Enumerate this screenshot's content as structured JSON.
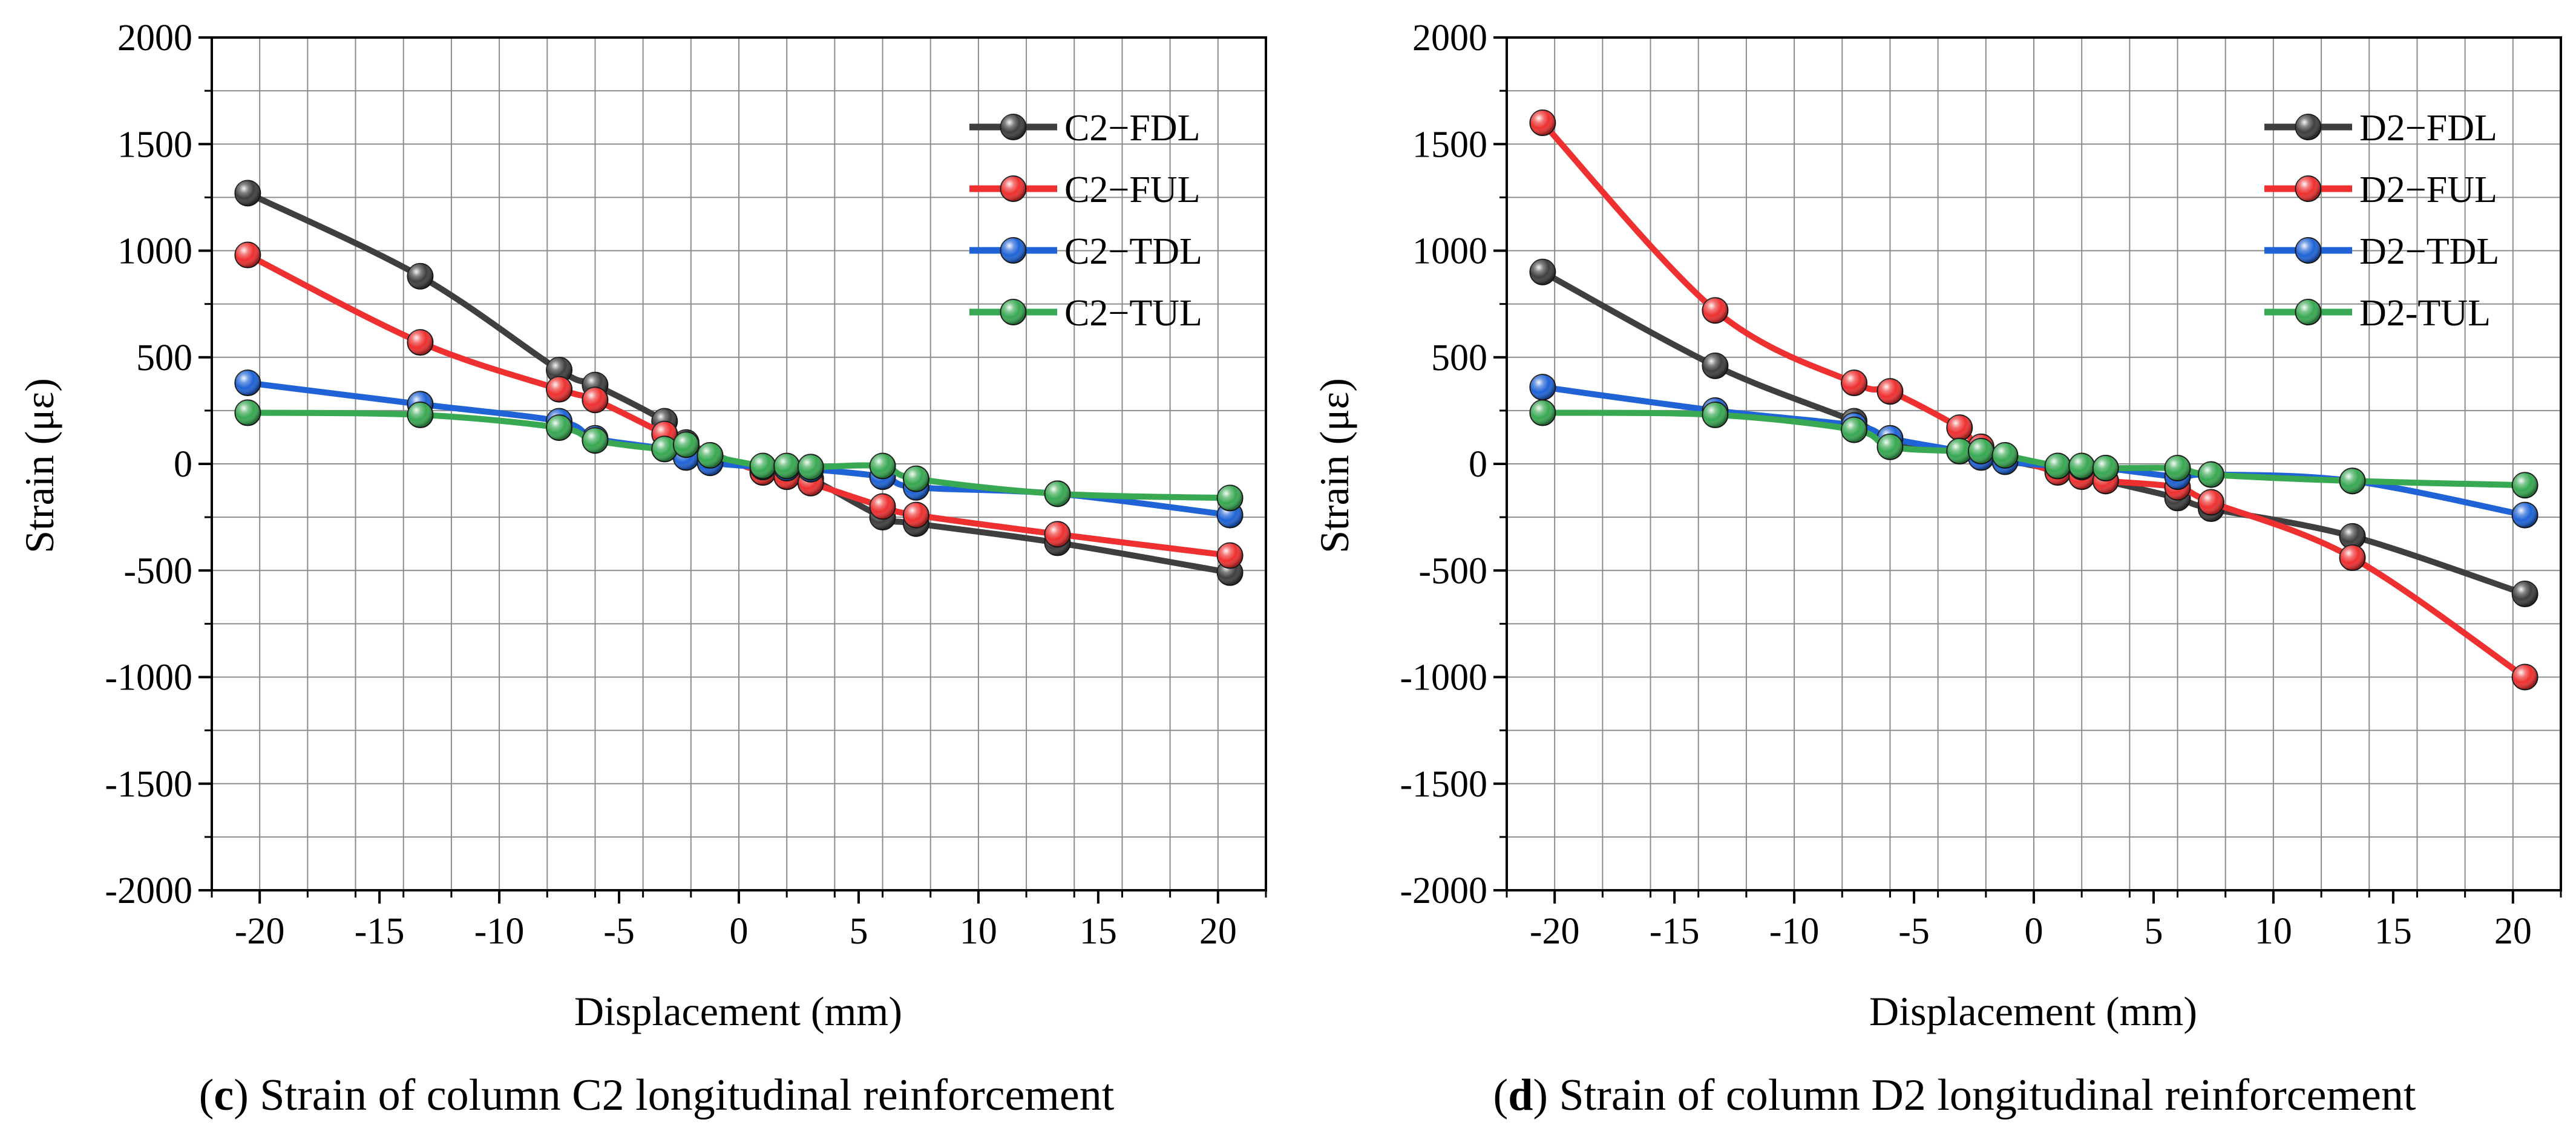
{
  "chart_data": [
    {
      "id": "c",
      "type": "line",
      "caption_letter": "c",
      "caption_text": "Strain of column C2 longitudinal reinforcement",
      "xlabel": "Displacement (mm)",
      "ylabel": "Strain (με)",
      "xlim": [
        -22,
        22
      ],
      "ylim": [
        -2000,
        2000
      ],
      "xticks": [
        -20,
        -15,
        -10,
        -5,
        0,
        5,
        10,
        15,
        20
      ],
      "xtick_labels": [
        "-20",
        "-15",
        "-10",
        "-5",
        "0",
        "5",
        "10",
        "15",
        "20"
      ],
      "yticks": [
        -2000,
        -1500,
        -1000,
        -500,
        0,
        500,
        1000,
        1500,
        2000
      ],
      "ytick_labels": [
        "-2000",
        "-1500",
        "-1000",
        "-500",
        "0",
        "500",
        "1000",
        "1500",
        "2000"
      ],
      "grid": true,
      "legend_position": "top-right",
      "series": [
        {
          "name": "C2−FDL",
          "color": "#3f3f3f",
          "x": [
            -20.5,
            -13.3,
            -7.5,
            -6.0,
            -3.1,
            -2.2,
            1.0,
            2.0,
            3.0,
            6.0,
            7.4,
            13.3,
            20.5
          ],
          "y": [
            1270,
            880,
            440,
            370,
            200,
            100,
            -40,
            -60,
            -70,
            -250,
            -280,
            -370,
            -510
          ]
        },
        {
          "name": "C2−FUL",
          "color": "#ee3030",
          "x": [
            -20.5,
            -13.3,
            -7.5,
            -6.0,
            -3.1,
            -2.2,
            1.0,
            2.0,
            3.0,
            6.0,
            7.4,
            13.3,
            20.5
          ],
          "y": [
            980,
            570,
            350,
            300,
            140,
            90,
            -40,
            -60,
            -90,
            -200,
            -240,
            -330,
            -430
          ]
        },
        {
          "name": "C2−TDL",
          "color": "#1f63d6",
          "x": [
            -20.5,
            -13.3,
            -7.5,
            -6.0,
            -3.1,
            -2.2,
            -1.2,
            1.0,
            2.0,
            3.0,
            6.0,
            7.4,
            13.3,
            20.5
          ],
          "y": [
            380,
            280,
            200,
            120,
            70,
            30,
            5,
            -15,
            -20,
            -25,
            -60,
            -110,
            -140,
            -240
          ]
        },
        {
          "name": "C2−TUL",
          "color": "#38a852",
          "x": [
            -20.5,
            -13.3,
            -7.5,
            -6.0,
            -3.1,
            -2.2,
            -1.2,
            1.0,
            2.0,
            3.0,
            6.0,
            7.4,
            13.3,
            20.5
          ],
          "y": [
            240,
            230,
            170,
            110,
            70,
            90,
            40,
            -10,
            -10,
            -15,
            -10,
            -70,
            -140,
            -160
          ]
        }
      ]
    },
    {
      "id": "d",
      "type": "line",
      "caption_letter": "d",
      "caption_text": "Strain of column D2 longitudinal reinforcement",
      "xlabel": "Displacement (mm)",
      "ylabel": "Strain (με)",
      "xlim": [
        -22,
        22
      ],
      "ylim": [
        -2000,
        2000
      ],
      "xticks": [
        -20,
        -15,
        -10,
        -5,
        0,
        5,
        10,
        15,
        20
      ],
      "xtick_labels": [
        "-20",
        "-15",
        "-10",
        "-5",
        "0",
        "5",
        "10",
        "15",
        "20"
      ],
      "yticks": [
        -2000,
        -1500,
        -1000,
        -500,
        0,
        500,
        1000,
        1500,
        2000
      ],
      "ytick_labels": [
        "-2000",
        "-1500",
        "-1000",
        "-500",
        "0",
        "500",
        "1000",
        "1500",
        "2000"
      ],
      "grid": true,
      "legend_position": "top-right",
      "series": [
        {
          "name": "D2−FDL",
          "color": "#3f3f3f",
          "x": [
            -20.5,
            -13.3,
            -7.5,
            -6.0,
            -3.1,
            -2.2,
            1.0,
            2.0,
            3.0,
            6.0,
            7.4,
            13.3,
            20.5
          ],
          "y": [
            900,
            460,
            200,
            110,
            60,
            40,
            -30,
            -50,
            -80,
            -160,
            -210,
            -340,
            -610
          ]
        },
        {
          "name": "D2−FUL",
          "color": "#ee3030",
          "x": [
            -20.5,
            -13.3,
            -7.5,
            -6.0,
            -3.1,
            -2.2,
            1.0,
            2.0,
            3.0,
            6.0,
            7.4,
            13.3,
            20.5
          ],
          "y": [
            1600,
            720,
            380,
            340,
            170,
            80,
            -40,
            -60,
            -80,
            -110,
            -180,
            -440,
            -1000
          ]
        },
        {
          "name": "D2−TDL",
          "color": "#1f63d6",
          "x": [
            -20.5,
            -13.3,
            -7.5,
            -6.0,
            -3.1,
            -2.2,
            -1.2,
            1.0,
            2.0,
            3.0,
            6.0,
            7.4,
            13.3,
            20.5
          ],
          "y": [
            360,
            250,
            180,
            120,
            60,
            30,
            10,
            -10,
            -15,
            -20,
            -60,
            -50,
            -80,
            -240
          ]
        },
        {
          "name": "D2-TUL",
          "color": "#38a852",
          "x": [
            -20.5,
            -13.3,
            -7.5,
            -6.0,
            -3.1,
            -2.2,
            -1.2,
            1.0,
            2.0,
            3.0,
            6.0,
            7.4,
            13.3,
            20.5
          ],
          "y": [
            240,
            230,
            160,
            80,
            60,
            60,
            40,
            -10,
            -10,
            -20,
            -20,
            -50,
            -80,
            -100
          ]
        }
      ]
    }
  ]
}
